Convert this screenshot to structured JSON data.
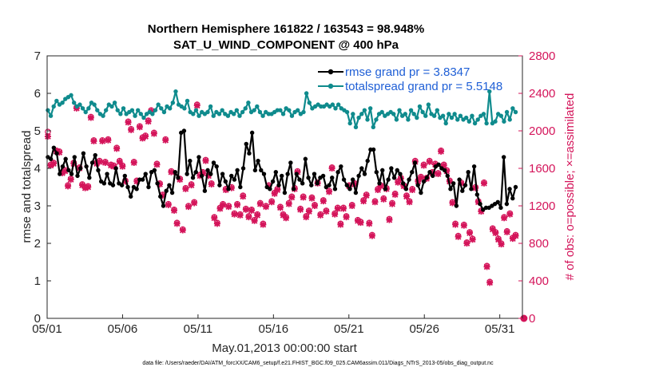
{
  "chart_data": {
    "type": "line",
    "title": "Northern Hemisphere 161822 / 163543 = 98.948%",
    "subtitle": "SAT_U_WIND_COMPONENT @ 400 hPa",
    "xlabel": "May.01,2013 00:00:00 start",
    "ylabel_left": "rmse and totalspread",
    "ylabel_right": "# of obs: o=possible; ×=assimilated",
    "ylim_left": [
      0,
      7
    ],
    "ylim_right": [
      0,
      2800
    ],
    "xlim": [
      0,
      31.5
    ],
    "grid": false,
    "legend_placement": "top-right",
    "footer": "data file: /Users/raeder/DAI/ATM_forcXX/CAM6_setup/f.e21.FHIST_BGC.f09_025.CAM6assim.011/Diags_NTrS_2013-05/obs_diag_output.nc",
    "x_ticks": [
      {
        "value": 0,
        "label": "05/01"
      },
      {
        "value": 5,
        "label": "05/06"
      },
      {
        "value": 10,
        "label": "05/11"
      },
      {
        "value": 15,
        "label": "05/16"
      },
      {
        "value": 20,
        "label": "05/21"
      },
      {
        "value": 25,
        "label": "05/26"
      },
      {
        "value": 30,
        "label": "05/31"
      }
    ],
    "y_ticks_left": [
      "0",
      "1",
      "2",
      "3",
      "4",
      "5",
      "6",
      "7"
    ],
    "y_ticks_right": [
      "0",
      "400",
      "800",
      "1200",
      "1600",
      "2000",
      "2400",
      "2800"
    ],
    "series": [
      {
        "name": "rmse",
        "legend_label": "rmse grand pr = 3.8347",
        "color": "#000000",
        "marker": "filled-circle",
        "axis": "left",
        "values": [
          4.3,
          4.25,
          4.55,
          4.4,
          3.85,
          4.05,
          4.25,
          3.95,
          3.85,
          4.3,
          3.8,
          4.0,
          4.4,
          4.05,
          3.75,
          4.15,
          4.35,
          3.95,
          3.65,
          3.6,
          3.85,
          3.6,
          3.55,
          4.0,
          3.6,
          3.55,
          3.8,
          3.5,
          3.25,
          3.5,
          3.45,
          3.7,
          3.7,
          3.85,
          3.5,
          3.9,
          3.95,
          3.6,
          3.25,
          3.0,
          3.4,
          3.55,
          3.35,
          3.9,
          3.75,
          4.95,
          5.0,
          3.85,
          4.2,
          3.75,
          3.9,
          4.3,
          3.8,
          3.4,
          3.95,
          3.85,
          4.15,
          4.05,
          3.55,
          3.85,
          3.65,
          3.45,
          3.8,
          3.7,
          3.95,
          3.5,
          4.0,
          4.65,
          4.4,
          4.95,
          3.95,
          4.2,
          3.95,
          3.85,
          3.5,
          3.45,
          3.65,
          3.9,
          3.55,
          3.8,
          3.35,
          3.85,
          4.15,
          3.45,
          3.85,
          3.7,
          3.6,
          4.25,
          3.75,
          3.55,
          3.85,
          3.6,
          3.75,
          3.8,
          3.5,
          3.55,
          3.75,
          3.45,
          3.9,
          4.05,
          3.7,
          3.55,
          3.45,
          3.7,
          3.35,
          3.8,
          4.0,
          3.85,
          4.2,
          4.5,
          4.5,
          3.9,
          3.6,
          3.95,
          3.45,
          3.7,
          4.0,
          3.75,
          3.95,
          3.85,
          3.6,
          3.45,
          3.7,
          3.9,
          4.15,
          3.55,
          3.35,
          3.65,
          3.75,
          3.9,
          3.8,
          4.05,
          4.1,
          4.0,
          3.95,
          3.8,
          3.45,
          3.6,
          3.0,
          3.7,
          3.4,
          3.55,
          3.9,
          3.45,
          4.05,
          3.3,
          3.05,
          2.9,
          2.95,
          2.95,
          3.0,
          3.05,
          3.1,
          2.95,
          4.3,
          3.05,
          3.45,
          3.2,
          3.5
        ]
      },
      {
        "name": "totalspread",
        "legend_label": "totalspread grand pr = 5.5148",
        "color": "#0f8b8d",
        "marker": "filled-circle",
        "axis": "left",
        "values": [
          5.55,
          5.4,
          5.65,
          5.8,
          5.7,
          5.75,
          5.85,
          5.9,
          5.95,
          5.75,
          5.65,
          5.7,
          5.6,
          5.5,
          5.6,
          5.75,
          5.7,
          5.55,
          5.45,
          5.4,
          5.55,
          5.7,
          5.65,
          5.75,
          5.55,
          5.45,
          5.6,
          5.45,
          5.5,
          5.55,
          5.4,
          5.55,
          5.45,
          5.35,
          5.45,
          5.5,
          5.45,
          5.55,
          5.7,
          5.6,
          5.5,
          5.65,
          5.6,
          5.75,
          6.05,
          5.7,
          5.65,
          5.6,
          5.8,
          5.5,
          5.45,
          5.55,
          5.4,
          5.5,
          5.45,
          5.5,
          5.65,
          5.4,
          5.5,
          5.45,
          5.55,
          5.45,
          5.4,
          5.5,
          5.45,
          5.55,
          5.4,
          5.5,
          5.6,
          5.75,
          5.5,
          5.55,
          5.65,
          5.5,
          5.4,
          5.5,
          5.45,
          5.45,
          5.5,
          5.55,
          5.55,
          5.45,
          5.6,
          5.55,
          5.4,
          5.5,
          5.55,
          5.45,
          5.5,
          6.0,
          5.75,
          5.6,
          5.65,
          5.7,
          5.65,
          5.65,
          5.7,
          5.65,
          5.7,
          5.6,
          5.7,
          5.6,
          5.55,
          5.5,
          5.2,
          5.45,
          5.1,
          5.35,
          5.45,
          5.55,
          5.3,
          5.6,
          5.1,
          5.3,
          5.45,
          5.5,
          5.4,
          5.45,
          5.5,
          5.45,
          5.3,
          5.55,
          5.4,
          5.45,
          5.3,
          5.55,
          5.45,
          5.35,
          5.65,
          5.5,
          5.4,
          5.7,
          5.45,
          5.4,
          5.55,
          5.35,
          5.4,
          5.2,
          5.45,
          5.35,
          5.45,
          5.3,
          5.4,
          5.3,
          5.35,
          5.25,
          5.4,
          5.2,
          5.3,
          5.4,
          5.45,
          5.2,
          6.05,
          5.2,
          5.25,
          5.45,
          5.4,
          5.25,
          5.5,
          5.3,
          5.6,
          5.5
        ]
      },
      {
        "name": "obs_possible",
        "legend_label": "possible",
        "color": "#d4145a",
        "marker": "open-circle",
        "axis": "right",
        "values": [
          1990,
          1640,
          1660,
          1790,
          1780,
          1560,
          1580,
          1420,
          1490,
          1660,
          2250,
          1610,
          1430,
          1400,
          1410,
          2150,
          1900,
          1660,
          1680,
          1900,
          1670,
          1910,
          1640,
          1630,
          1820,
          1680,
          1630,
          1470,
          2100,
          2020,
          1670,
          1470,
          2050,
          1930,
          1950,
          2110,
          2220,
          1980,
          1650,
          1440,
          1320,
          1910,
          1220,
          1570,
          1160,
          1020,
          1490,
          950,
          1390,
          1200,
          1430,
          1240,
          2280,
          1530,
          1560,
          1690,
          1530,
          1440,
          1080,
          1020,
          1180,
          1220,
          1380,
          1200,
          1400,
          1120,
          1220,
          1110,
          1310,
          1170,
          1090,
          1160,
          1050,
          1110,
          1230,
          1010,
          1200,
          1420,
          1250,
          1340,
          1380,
          1190,
          1110,
          1080,
          1230,
          1300,
          1390,
          1570,
          1170,
          1300,
          1090,
          1150,
          1290,
          1210,
          1450,
          1110,
          1260,
          1150,
          1360,
          1610,
          1120,
          1180,
          1010,
          1180,
          1090,
          1420,
          1210,
          1440,
          1050,
          1030,
          1260,
          1320,
          1020,
          890,
          1250,
          1380,
          1420,
          1280,
          1390,
          1060,
          1230,
          1330,
          1460,
          1500,
          1420,
          1310,
          1250,
          1380,
          1680,
          1470,
          1510,
          1640,
          1500,
          1680,
          1560,
          1650,
          1550,
          1790,
          1640,
          1580,
          1470,
          1240,
          1010,
          880,
          1450,
          1000,
          810,
          920,
          850,
          1400,
          1250,
          1150,
          1450,
          560,
          390,
          960,
          920,
          850,
          800,
          1080,
          930,
          1120,
          860,
          890
        ]
      },
      {
        "name": "obs_assimilated",
        "legend_label": "assimilated",
        "color": "#d4145a",
        "marker": "cross",
        "axis": "right",
        "values": [
          1940,
          1630,
          1650,
          1780,
          1770,
          1550,
          1570,
          1410,
          1480,
          1650,
          2240,
          1600,
          1420,
          1390,
          1400,
          2140,
          1890,
          1650,
          1670,
          1890,
          1660,
          1900,
          1630,
          1620,
          1810,
          1670,
          1620,
          1460,
          2090,
          2010,
          1660,
          1460,
          2040,
          1920,
          1940,
          2100,
          2210,
          1970,
          1640,
          1430,
          1310,
          1900,
          1210,
          1560,
          1150,
          1010,
          1480,
          940,
          1380,
          1190,
          1420,
          1230,
          2270,
          1520,
          1550,
          1680,
          1520,
          1430,
          1070,
          1010,
          1170,
          1210,
          1370,
          1190,
          1390,
          1110,
          1210,
          1100,
          1300,
          1160,
          1080,
          1150,
          1040,
          1100,
          1220,
          1000,
          1190,
          1410,
          1240,
          1330,
          1370,
          1180,
          1100,
          1070,
          1220,
          1290,
          1380,
          1560,
          1160,
          1290,
          1080,
          1140,
          1280,
          1200,
          1440,
          1100,
          1250,
          1140,
          1350,
          1600,
          1110,
          1170,
          1000,
          1170,
          1080,
          1410,
          1200,
          1430,
          1040,
          1020,
          1250,
          1310,
          1010,
          880,
          1240,
          1370,
          1410,
          1270,
          1380,
          1050,
          1220,
          1320,
          1450,
          1490,
          1410,
          1300,
          1240,
          1370,
          1670,
          1460,
          1500,
          1630,
          1490,
          1670,
          1550,
          1640,
          1540,
          1780,
          1630,
          1570,
          1460,
          1230,
          1000,
          870,
          1440,
          990,
          800,
          910,
          840,
          1390,
          1240,
          1140,
          1440,
          550,
          380,
          950,
          910,
          840,
          790,
          1070,
          920,
          1110,
          850,
          880
        ]
      }
    ],
    "extra_marker": {
      "name": "zero-count",
      "x": 31.6,
      "value": 0,
      "axis": "right",
      "color": "#d4145a"
    }
  }
}
